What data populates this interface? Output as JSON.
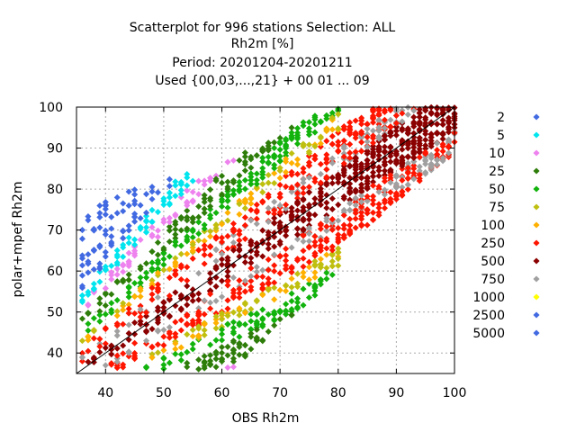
{
  "chart_data": {
    "type": "scatter",
    "title_lines": [
      "Scatterplot for  996 stations Selection: ALL",
      "Rh2m [%]",
      "Period: 20201204-20201211",
      "Used {00,03,...,21} + 00 01 ... 09"
    ],
    "xlabel": "OBS Rh2m",
    "ylabel": "polar+mpef Rh2m",
    "xlim": [
      35,
      100
    ],
    "ylim": [
      35,
      100
    ],
    "xticks": [
      40,
      50,
      60,
      70,
      80,
      90,
      100
    ],
    "yticks": [
      40,
      50,
      60,
      70,
      80,
      90,
      100
    ],
    "grid": true,
    "diagonal": true,
    "legend_position": "right",
    "series": [
      {
        "name": "2",
        "color": "#4169e1"
      },
      {
        "name": "5",
        "color": "#00e5ee"
      },
      {
        "name": "10",
        "color": "#ee82ee"
      },
      {
        "name": "25",
        "color": "#2e7d0a"
      },
      {
        "name": "50",
        "color": "#11b30c"
      },
      {
        "name": "75",
        "color": "#bfbf10"
      },
      {
        "name": "100",
        "color": "#ffb000"
      },
      {
        "name": "250",
        "color": "#ff1500"
      },
      {
        "name": "500",
        "color": "#8b0000"
      },
      {
        "name": "750",
        "color": "#a0a0a0"
      },
      {
        "name": "1000",
        "color": "#ffff00"
      },
      {
        "name": "2500",
        "color": "#4169e1"
      },
      {
        "name": "5000",
        "color": "#4169e1"
      }
    ]
  }
}
